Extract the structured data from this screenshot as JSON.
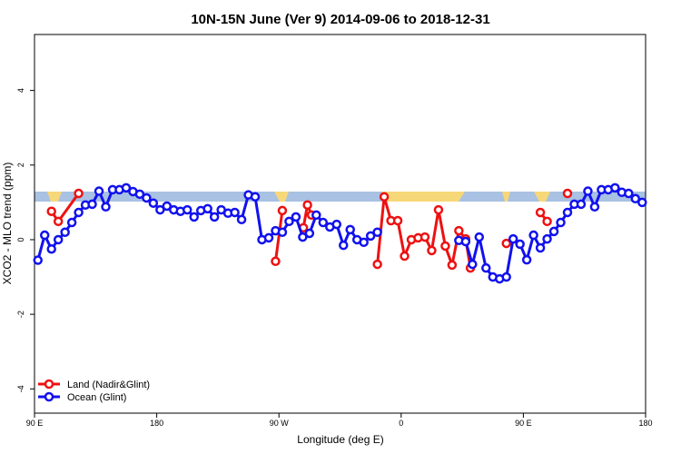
{
  "chart_data": {
    "type": "line",
    "title": "10N-15N June (Ver 9)   2014-09-06 to 2018-12-31",
    "xlabel": "Longitude (deg E)",
    "ylabel": "XCO2 - MLO trend (ppm)",
    "xlim": [
      90,
      540
    ],
    "ylim": [
      -4.65,
      5.5
    ],
    "xticks": [
      {
        "value": 90,
        "label": "90 E"
      },
      180,
      {
        "value": 270,
        "label": "90 W"
      },
      {
        "value": 360,
        "label": "0"
      },
      {
        "value": 450,
        "label": "90 E"
      },
      {
        "value": 540,
        "label": "180"
      }
    ],
    "yticks": [
      -4,
      -2,
      0,
      2,
      4
    ],
    "legend": "bottom-left",
    "series": [
      {
        "name": "Land (Nadir&Glint)",
        "color": "#ee1111",
        "x": [
          102.5,
          107.5,
          122.5,
          127.5,
          267.5,
          272.5,
          277.5,
          288,
          291,
          294,
          297.5,
          342.5,
          347.5,
          352.5,
          357.5,
          362.5,
          367.5,
          372.5,
          377.5,
          382.5,
          387.5,
          392.5,
          397.5,
          402.5,
          407.5,
          411,
          417.5,
          437.5,
          442.5,
          462.5,
          467.5,
          472.5,
          482.5
        ],
        "values": [
          0.76,
          0.49,
          1.24,
          null,
          -0.58,
          0.78,
          null,
          0.32,
          0.93,
          0.66,
          null,
          -0.66,
          1.15,
          0.51,
          0.51,
          -0.44,
          0,
          0.05,
          0.07,
          -0.29,
          0.8,
          -0.17,
          -0.68,
          0.24,
          0.02,
          -0.76,
          null,
          -0.1,
          null,
          0.73,
          0.49,
          null,
          1.24
        ]
      },
      {
        "name": "Ocean (Glint)",
        "color": "#1111ee",
        "x": [
          92.5,
          97.5,
          102.5,
          107.5,
          112.5,
          117.5,
          122.5,
          127.5,
          132.5,
          137.5,
          142.5,
          147.5,
          152.5,
          157.5,
          162.5,
          167.5,
          172.5,
          177.5,
          182.5,
          187.5,
          192.5,
          197.5,
          202.5,
          207.5,
          212.5,
          217.5,
          222.5,
          227.5,
          232.5,
          237.5,
          242.5,
          247.5,
          252.5,
          257.5,
          262.5,
          267.5,
          272.5,
          277.5,
          282.5,
          287.5,
          292.5,
          297.5,
          302.5,
          307.5,
          312.5,
          317.5,
          322.5,
          327.5,
          332.5,
          337.5,
          342.5,
          347.5,
          402.5,
          407.5,
          412.5,
          417.5,
          422.5,
          427.5,
          432.5,
          437.5,
          442.5,
          447.5,
          452.5,
          457.5,
          462.5,
          467.5,
          472.5,
          477.5,
          482.5,
          487.5,
          492.5,
          497.5,
          502.5,
          507.5,
          512.5,
          517.5,
          522.5,
          527.5,
          532.5,
          537.5
        ],
        "values": [
          -0.55,
          0.12,
          -0.25,
          0,
          0.2,
          0.46,
          0.73,
          0.93,
          0.95,
          1.3,
          0.88,
          1.34,
          1.34,
          1.39,
          1.29,
          1.22,
          1.12,
          0.98,
          0.8,
          0.9,
          0.8,
          0.76,
          0.8,
          0.61,
          0.78,
          0.83,
          0.61,
          0.8,
          0.71,
          0.73,
          0.54,
          1.2,
          1.15,
          0,
          0.05,
          0.24,
          0.2,
          0.49,
          0.61,
          0.07,
          0.17,
          0.66,
          0.46,
          0.34,
          0.41,
          -0.15,
          0.27,
          0,
          -0.07,
          0.1,
          0.2,
          null,
          -0.02,
          -0.05,
          -0.66,
          0.07,
          -0.76,
          -1.0,
          -1.05,
          -1.0,
          0.02,
          -0.12,
          -0.54,
          0.12,
          -0.22,
          0.02,
          0.22,
          0.46,
          0.73,
          0.95,
          0.95,
          1.3,
          0.88,
          1.34,
          1.34,
          1.39,
          1.27,
          1.24,
          1.1,
          1.0
        ]
      }
    ]
  }
}
